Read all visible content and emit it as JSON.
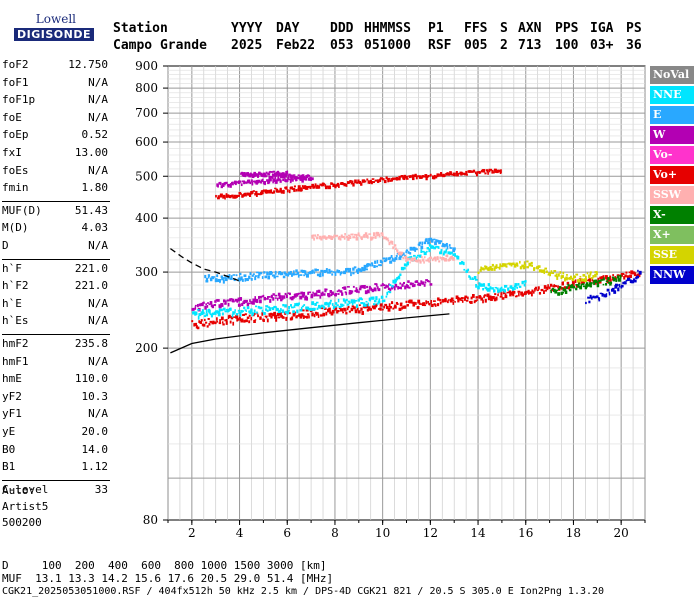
{
  "logo": {
    "line1": "Lowell",
    "line2": "DIGISONDE"
  },
  "header": {
    "row1": [
      "Station",
      "YYYY",
      "DAY",
      "DDD",
      "HHMMSS",
      "P1",
      "FFS",
      "S",
      "AXN",
      "PPS",
      "IGA",
      "PS"
    ],
    "row2": [
      "Campo Grande",
      "2025",
      "Feb22",
      "053",
      "051000",
      "RSF",
      "005",
      "2",
      "713",
      "100",
      "03+",
      "36"
    ]
  },
  "params": [
    {
      "name": "foF2",
      "value": "12.750"
    },
    {
      "name": "foF1",
      "value": "N/A"
    },
    {
      "name": "foF1p",
      "value": "N/A"
    },
    {
      "name": "foE",
      "value": "N/A"
    },
    {
      "name": "foEp",
      "value": "0.52"
    },
    {
      "name": "fxI",
      "value": "13.00"
    },
    {
      "name": "foEs",
      "value": "N/A"
    },
    {
      "name": "fmin",
      "value": "1.80"
    },
    {
      "name": "MUF(D)",
      "value": "51.43"
    },
    {
      "name": "M(D)",
      "value": "4.03"
    },
    {
      "name": "D",
      "value": "N/A"
    },
    {
      "name": "h`F",
      "value": "221.0"
    },
    {
      "name": "h`F2",
      "value": "221.0"
    },
    {
      "name": "h`E",
      "value": "N/A"
    },
    {
      "name": "h`Es",
      "value": "N/A"
    },
    {
      "name": "hmF2",
      "value": "235.8"
    },
    {
      "name": "hmF1",
      "value": "N/A"
    },
    {
      "name": "hmE",
      "value": "110.0"
    },
    {
      "name": "yF2",
      "value": "10.3"
    },
    {
      "name": "yF1",
      "value": "N/A"
    },
    {
      "name": "yE",
      "value": "20.0"
    },
    {
      "name": "B0",
      "value": "14.0"
    },
    {
      "name": "B1",
      "value": "1.12"
    },
    {
      "name": "C-level",
      "value": "33"
    }
  ],
  "auto": {
    "line1": "Auto:",
    "line2": "Artist5",
    "line3": "500200"
  },
  "legend": [
    {
      "label": "NoVal",
      "color": "#888888"
    },
    {
      "label": "NNE",
      "color": "#00e5ff"
    },
    {
      "label": "E",
      "color": "#29a8ff"
    },
    {
      "label": "W",
      "color": "#b300b3"
    },
    {
      "label": "Vo-",
      "color": "#ff33cc"
    },
    {
      "label": "Vo+",
      "color": "#e60000"
    },
    {
      "label": "SSW",
      "color": "#ffb0b0"
    },
    {
      "label": "X-",
      "color": "#008000"
    },
    {
      "label": "X+",
      "color": "#7fbf5f"
    },
    {
      "label": "SSE",
      "color": "#d4d400"
    },
    {
      "label": "NNW",
      "color": "#0000cc"
    }
  ],
  "footer": {
    "d_row": "D     100  200  400  600  800 1000 1500 3000 [km]",
    "muf_row": "MUF  13.1 13.3 14.2 15.6 17.6 20.5 29.0 51.4 [MHz]",
    "file_row": "CGK21_2025053051000.RSF / 404fx512h 50 kHz 2.5 km / DPS-4D CGK21 821 / 20.5 S 305.0 E Ion2Png 1.3.20"
  },
  "chart_data": {
    "type": "scatter",
    "x_ticks": [
      2,
      4,
      6,
      8,
      10,
      12,
      14,
      16,
      18,
      20
    ],
    "y_ticks": [
      80,
      200,
      300,
      400,
      500,
      600,
      700,
      800,
      900
    ],
    "xlim": [
      1,
      21
    ],
    "ylim": [
      80,
      900
    ],
    "grid": true,
    "legend_position": "right",
    "series": [
      {
        "color": "#e60000",
        "points": [
          [
            2,
            228
          ],
          [
            3,
            232
          ],
          [
            4,
            236
          ],
          [
            5,
            238
          ],
          [
            6,
            240
          ],
          [
            7,
            243
          ],
          [
            8,
            246
          ],
          [
            9,
            248
          ],
          [
            10,
            251
          ],
          [
            11,
            254
          ],
          [
            12,
            257
          ],
          [
            13,
            260
          ],
          [
            14,
            263
          ],
          [
            15,
            267
          ],
          [
            16,
            271
          ],
          [
            17,
            277
          ],
          [
            18,
            284
          ],
          [
            19,
            290
          ],
          [
            20,
            296
          ],
          [
            20.8,
            302
          ]
        ]
      },
      {
        "color": "#b300b3",
        "points": [
          [
            2,
            250
          ],
          [
            3,
            255
          ],
          [
            4,
            258
          ],
          [
            5,
            262
          ],
          [
            6,
            266
          ],
          [
            7,
            268
          ],
          [
            8,
            272
          ],
          [
            9,
            276
          ],
          [
            10,
            279
          ],
          [
            11,
            282
          ],
          [
            12,
            286
          ]
        ]
      },
      {
        "color": "#00e5ff",
        "points": [
          [
            2,
            241
          ],
          [
            4,
            245
          ],
          [
            6,
            249
          ],
          [
            8,
            255
          ],
          [
            10,
            260
          ],
          [
            11,
            320
          ],
          [
            12,
            345
          ],
          [
            13,
            330
          ],
          [
            14,
            280
          ],
          [
            15,
            275
          ],
          [
            16,
            283
          ]
        ]
      },
      {
        "color": "#29a8ff",
        "points": [
          [
            2.5,
            292
          ],
          [
            3,
            292
          ],
          [
            4,
            294
          ],
          [
            5,
            297
          ],
          [
            9,
            305
          ],
          [
            11,
            335
          ],
          [
            12,
            360
          ],
          [
            13,
            338
          ]
        ]
      },
      {
        "color": "#e60000",
        "points": [
          [
            3,
            450
          ],
          [
            4,
            456
          ],
          [
            5,
            462
          ],
          [
            6,
            470
          ],
          [
            7,
            476
          ],
          [
            8,
            482
          ],
          [
            9,
            488
          ],
          [
            10,
            494
          ],
          [
            11,
            500
          ],
          [
            12,
            505
          ],
          [
            13,
            510
          ],
          [
            14,
            514
          ],
          [
            15,
            518
          ]
        ]
      },
      {
        "color": "#b300b3",
        "points": [
          [
            3,
            480
          ],
          [
            4,
            485
          ],
          [
            5,
            490
          ],
          [
            6,
            495
          ],
          [
            7,
            500
          ],
          [
            4,
            508
          ],
          [
            6,
            512
          ]
        ]
      },
      {
        "color": "#ffb0b0",
        "points": [
          [
            7,
            362
          ],
          [
            8,
            364
          ],
          [
            9,
            366
          ],
          [
            10,
            368
          ],
          [
            11,
            320
          ],
          [
            12,
            323
          ],
          [
            13,
            326
          ]
        ]
      },
      {
        "color": "#d4d400",
        "points": [
          [
            14,
            305
          ],
          [
            15,
            312
          ],
          [
            16,
            315
          ],
          [
            17,
            300
          ],
          [
            18,
            292
          ],
          [
            19,
            298
          ]
        ]
      },
      {
        "color": "#0000cc",
        "points": [
          [
            18.5,
            258
          ],
          [
            19,
            265
          ],
          [
            19.5,
            272
          ],
          [
            20,
            285
          ],
          [
            20.5,
            290
          ],
          [
            20.8,
            305
          ]
        ]
      },
      {
        "color": "#008000",
        "points": [
          [
            17,
            270
          ],
          [
            18,
            280
          ],
          [
            19,
            285
          ],
          [
            20,
            292
          ]
        ]
      }
    ],
    "fit_curves": [
      {
        "style": "solid",
        "points": [
          [
            1.1,
            195
          ],
          [
            2,
            205
          ],
          [
            3,
            210
          ],
          [
            5,
            217
          ],
          [
            7,
            223
          ],
          [
            9,
            229
          ],
          [
            11,
            235
          ],
          [
            12.8,
            240
          ]
        ]
      },
      {
        "style": "dashed",
        "points": [
          [
            1.1,
            340
          ],
          [
            1.6,
            325
          ],
          [
            2,
            315
          ],
          [
            2.5,
            305
          ],
          [
            3,
            300
          ],
          [
            3.5,
            293
          ],
          [
            4,
            286
          ]
        ]
      }
    ]
  }
}
